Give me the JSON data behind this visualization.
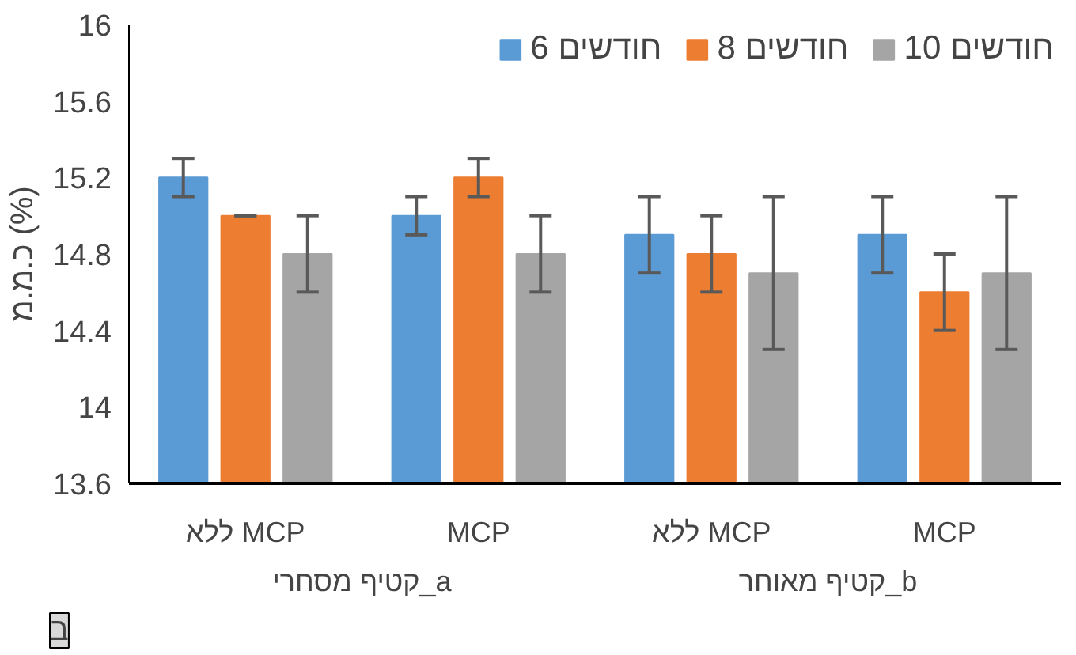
{
  "chart_data": {
    "type": "bar",
    "ylabel": "כ.מ.מ (%)",
    "categories": [
      "ללא MCP",
      "MCP",
      "ללא MCP",
      "MCP"
    ],
    "series": [
      {
        "name": "6 חודשים",
        "color": "#5b9bd5",
        "values": [
          15.2,
          15.0,
          14.9,
          14.9
        ],
        "errors": [
          0.1,
          0.1,
          0.2,
          0.2
        ]
      },
      {
        "name": "8 חודשים",
        "color": "#ed7d31",
        "values": [
          15.0,
          15.2,
          14.8,
          14.6
        ],
        "errors": [
          0,
          0.1,
          0.2,
          0.2
        ]
      },
      {
        "name": "10 חודשים",
        "color": "#a5a5a5",
        "values": [
          14.8,
          14.8,
          14.7,
          14.7
        ],
        "errors": [
          0.2,
          0.2,
          0.4,
          0.4
        ]
      }
    ],
    "ylim": [
      13.6,
      16
    ],
    "yticks": [
      13.6,
      14,
      14.4,
      14.8,
      15.2,
      15.6,
      16
    ],
    "grid": false,
    "legend": "top",
    "annotations": [
      "קטיף מסחרי_a",
      "קטיף מאוחר_b",
      "ב"
    ]
  }
}
